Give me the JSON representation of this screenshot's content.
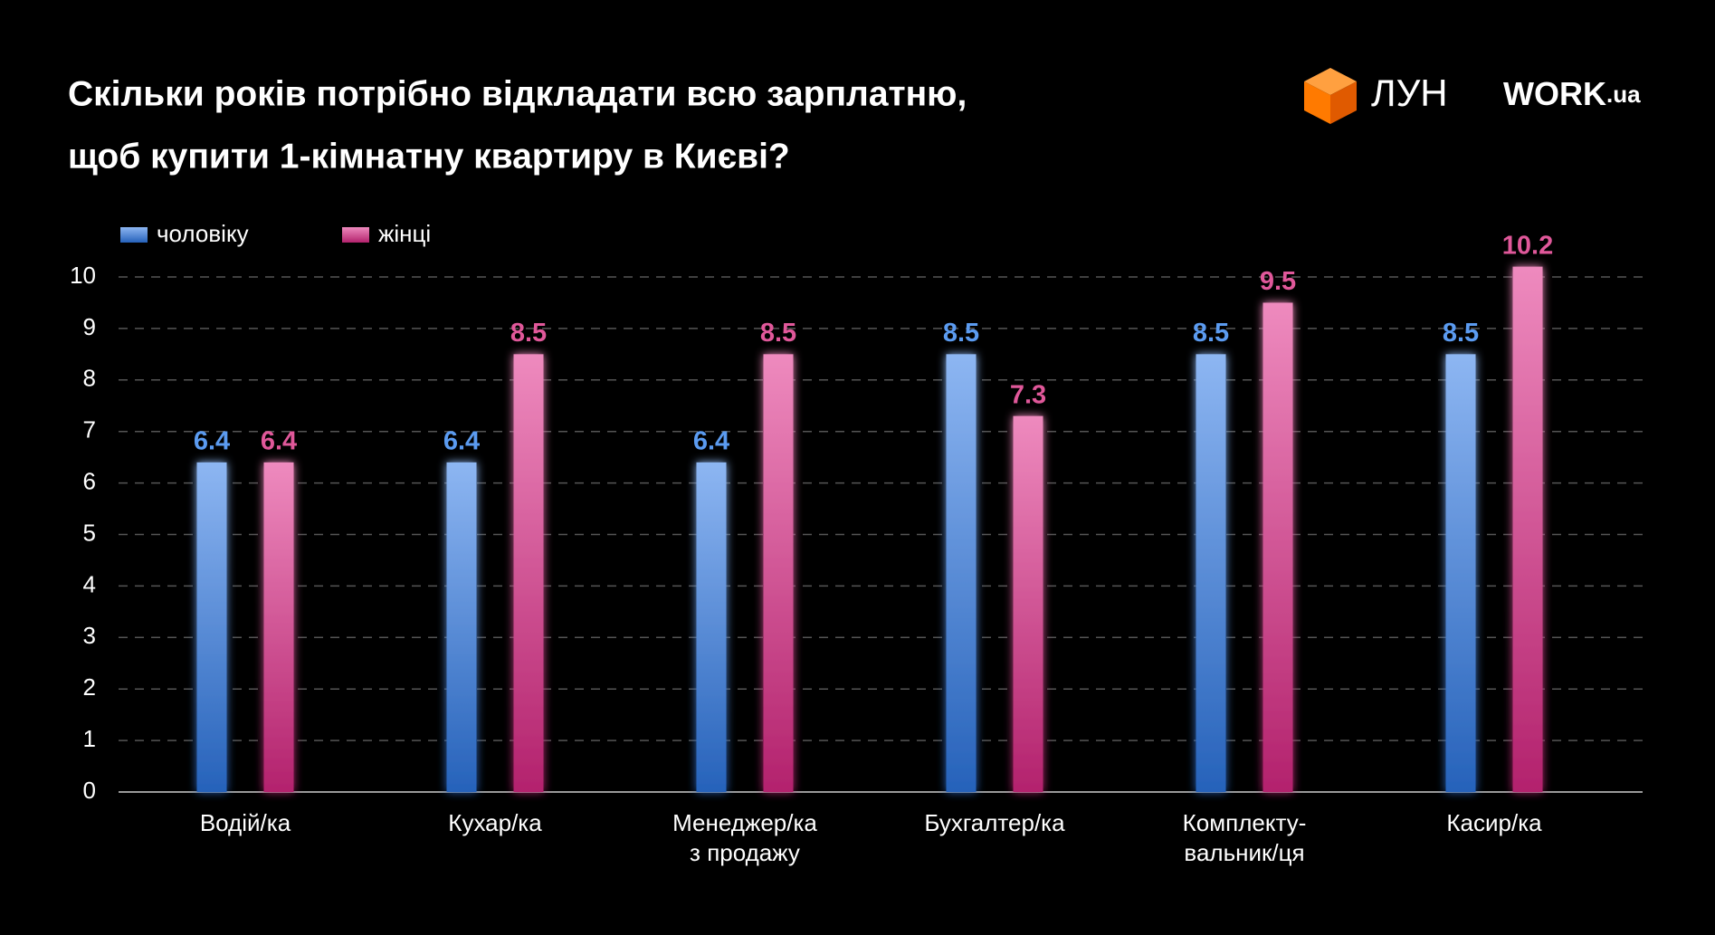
{
  "chart_data": {
    "type": "bar",
    "title_lines": [
      "Скільки років потрібно відкладати всю зарплатню,",
      "щоб купити 1-кімнатну квартиру в Києві?"
    ],
    "categories": [
      "Водій/ка",
      "Кухар/ка",
      "Менеджер/ка\nз продажу",
      "Бухгалтер/ка",
      "Комплекту-\nвальник/ця",
      "Касир/ка"
    ],
    "series": [
      {
        "name": "чоловіку",
        "color": "#2f7ae8",
        "label_color": "#5b9bf0",
        "values": [
          6.4,
          6.4,
          6.4,
          8.5,
          8.5,
          8.5
        ]
      },
      {
        "name": "жінці",
        "color": "#e02a88",
        "label_color": "#e0589a",
        "values": [
          6.4,
          8.5,
          8.5,
          7.3,
          9.5,
          10.2
        ]
      }
    ],
    "ylim": [
      0,
      10
    ],
    "yticks": [
      0,
      1,
      2,
      3,
      4,
      5,
      6,
      7,
      8,
      9,
      10
    ],
    "grid": true,
    "legend": "top-left"
  },
  "branding": {
    "lun": "ЛУН",
    "work": "WORK",
    "work_suffix": ".ua"
  }
}
